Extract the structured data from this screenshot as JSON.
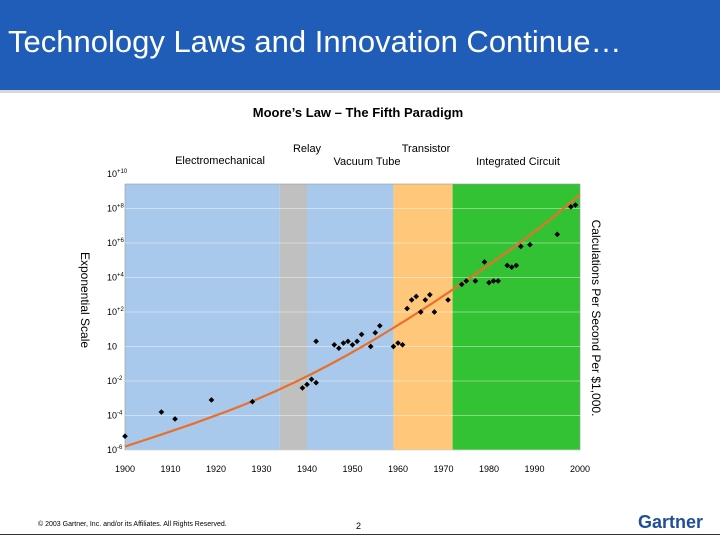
{
  "slide": {
    "title": "Technology Laws and Innovation Continue…",
    "footer": "© 2003 Gartner, Inc. and/or its Affiliates. All Rights Reserved.",
    "page_number": "2",
    "logo_text": "Gartner"
  },
  "colors": {
    "title_bar": "#1f5db8",
    "electromechanical": "#a9c9ec",
    "relay": "#c0c0c0",
    "vacuum_tube": "#a9c9ec",
    "transistor": "#ffc77a",
    "integrated_circuit": "#33c233",
    "trend_line": "#e8702a",
    "points": "#000000"
  },
  "chart_data": {
    "type": "scatter",
    "title": "Moore’s Law – The Fifth Paradigm",
    "ylabel": "Exponential Scale",
    "ylabel_right": "Calculations Per Second Per $1,000.",
    "xlim": [
      1900,
      2000
    ],
    "ylim_exponent": [
      -6,
      10
    ],
    "y_scale": "log10",
    "x_ticks": [
      "1900",
      "1910",
      "1920",
      "1930",
      "1940",
      "1950",
      "1960",
      "1970",
      "1980",
      "1990",
      "2000"
    ],
    "y_ticks": [
      {
        "exp": 10,
        "base": "10",
        "sup": "+10"
      },
      {
        "exp": 8,
        "base": "10",
        "sup": "+8"
      },
      {
        "exp": 6,
        "base": "10",
        "sup": "+6"
      },
      {
        "exp": 4,
        "base": "10",
        "sup": "+4"
      },
      {
        "exp": 2,
        "base": "10",
        "sup": "+2"
      },
      {
        "exp": 0,
        "base": "10",
        "sup": ""
      },
      {
        "exp": -2,
        "base": "10",
        "sup": "-2"
      },
      {
        "exp": -4,
        "base": "10",
        "sup": "-4"
      },
      {
        "exp": -6,
        "base": "10",
        "sup": "-6"
      }
    ],
    "regions": [
      {
        "label": "Electromechanical",
        "x_start": 1900,
        "x_end": 1934,
        "color_key": "electromechanical"
      },
      {
        "label": "Relay",
        "x_start": 1934,
        "x_end": 1940,
        "color_key": "relay"
      },
      {
        "label": "Vacuum Tube",
        "x_start": 1940,
        "x_end": 1959,
        "color_key": "vacuum_tube"
      },
      {
        "label": "Transistor",
        "x_start": 1959,
        "x_end": 1972,
        "color_key": "transistor"
      },
      {
        "label": "Integrated Circuit",
        "x_start": 1972,
        "x_end": 2000,
        "color_key": "integrated_circuit"
      }
    ],
    "points": [
      {
        "x": 1900,
        "y": -5.2
      },
      {
        "x": 1908,
        "y": -3.8
      },
      {
        "x": 1911,
        "y": -4.2
      },
      {
        "x": 1919,
        "y": -3.1
      },
      {
        "x": 1928,
        "y": -3.2
      },
      {
        "x": 1939,
        "y": -2.4
      },
      {
        "x": 1940,
        "y": -2.2
      },
      {
        "x": 1941,
        "y": -1.9
      },
      {
        "x": 1942,
        "y": -2.1
      },
      {
        "x": 1942,
        "y": 0.3
      },
      {
        "x": 1946,
        "y": 0.1
      },
      {
        "x": 1947,
        "y": -0.1
      },
      {
        "x": 1948,
        "y": 0.2
      },
      {
        "x": 1949,
        "y": 0.3
      },
      {
        "x": 1950,
        "y": 0.1
      },
      {
        "x": 1951,
        "y": 0.3
      },
      {
        "x": 1952,
        "y": 0.7
      },
      {
        "x": 1954,
        "y": 0.0
      },
      {
        "x": 1955,
        "y": 0.8
      },
      {
        "x": 1956,
        "y": 1.2
      },
      {
        "x": 1959,
        "y": 0.0
      },
      {
        "x": 1960,
        "y": 0.2
      },
      {
        "x": 1961,
        "y": 0.1
      },
      {
        "x": 1962,
        "y": 2.2
      },
      {
        "x": 1963,
        "y": 2.7
      },
      {
        "x": 1964,
        "y": 2.9
      },
      {
        "x": 1965,
        "y": 2.0
      },
      {
        "x": 1966,
        "y": 2.7
      },
      {
        "x": 1967,
        "y": 3.0
      },
      {
        "x": 1968,
        "y": 2.0
      },
      {
        "x": 1971,
        "y": 2.7
      },
      {
        "x": 1974,
        "y": 3.6
      },
      {
        "x": 1975,
        "y": 3.8
      },
      {
        "x": 1977,
        "y": 3.8
      },
      {
        "x": 1979,
        "y": 4.9
      },
      {
        "x": 1980,
        "y": 3.7
      },
      {
        "x": 1981,
        "y": 3.8
      },
      {
        "x": 1982,
        "y": 3.8
      },
      {
        "x": 1984,
        "y": 4.7
      },
      {
        "x": 1985,
        "y": 4.6
      },
      {
        "x": 1986,
        "y": 4.7
      },
      {
        "x": 1987,
        "y": 5.8
      },
      {
        "x": 1989,
        "y": 5.9
      },
      {
        "x": 1995,
        "y": 6.5
      },
      {
        "x": 1998,
        "y": 8.1
      },
      {
        "x": 1999,
        "y": 8.2
      }
    ],
    "trend": [
      {
        "x": 1900,
        "y": -5.8
      },
      {
        "x": 1915,
        "y": -4.5
      },
      {
        "x": 1930,
        "y": -3.0
      },
      {
        "x": 1945,
        "y": -1.1
      },
      {
        "x": 1960,
        "y": 1.2
      },
      {
        "x": 1975,
        "y": 3.8
      },
      {
        "x": 1990,
        "y": 6.6
      },
      {
        "x": 2000,
        "y": 8.8
      }
    ]
  }
}
